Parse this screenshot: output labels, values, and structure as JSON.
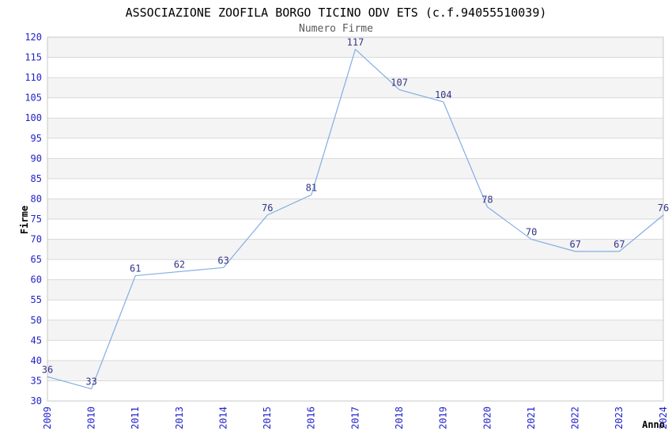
{
  "chart_data": {
    "type": "line",
    "title": "ASSOCIAZIONE ZOOFILA BORGO TICINO ODV ETS (c.f.94055510039)",
    "subtitle": "Numero Firme",
    "xlabel": "Anno",
    "ylabel": "Firme",
    "categories": [
      "2009",
      "2010",
      "2011",
      "2013",
      "2014",
      "2015",
      "2016",
      "2017",
      "2018",
      "2019",
      "2020",
      "2021",
      "2022",
      "2023",
      "2024"
    ],
    "values": [
      36,
      33,
      61,
      62,
      63,
      76,
      81,
      117,
      107,
      104,
      78,
      70,
      67,
      67,
      76
    ],
    "ylim": [
      30,
      120
    ],
    "ytick_step": 5,
    "grid": "horizontal-bands",
    "legend": "none",
    "colors": {
      "line": "#82AEE3",
      "tick_label": "#2222CC",
      "point_label": "#333388",
      "band_fill": "#F4F4F4",
      "grid_line": "#D9D9D9",
      "plot_border": "#C8C8C8",
      "title": "#000000",
      "subtitle": "#595959",
      "axis_title": "#000000",
      "background": "#FFFFFF"
    }
  }
}
